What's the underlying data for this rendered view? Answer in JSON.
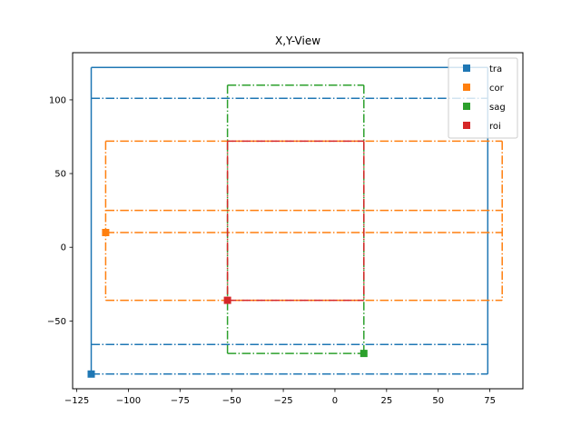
{
  "chart_data": {
    "type": "line",
    "title": "X,Y-View",
    "xlabel": "",
    "ylabel": "",
    "xlim": [
      -127,
      91
    ],
    "ylim": [
      -96,
      132
    ],
    "xticks": [
      -125,
      -100,
      -75,
      -50,
      -25,
      0,
      25,
      50,
      75
    ],
    "yticks": [
      -50,
      0,
      50,
      100
    ],
    "xtick_labels": [
      "−125",
      "−100",
      "−75",
      "−50",
      "−25",
      "0",
      "25",
      "50",
      "75"
    ],
    "ytick_labels": [
      "−50",
      "0",
      "50",
      "100"
    ],
    "legend_position": "top-right",
    "grid": false,
    "series": [
      {
        "name": "tra",
        "color": "#1f77b4",
        "marker": [
          -118,
          -86
        ],
        "segments": [
          {
            "x": [
              -118,
              74
            ],
            "y": [
              122,
              122
            ],
            "style": "solid"
          },
          {
            "x": [
              -118,
              -118
            ],
            "y": [
              122,
              -86
            ],
            "style": "solid"
          },
          {
            "x": [
              74,
              74
            ],
            "y": [
              122,
              -86
            ],
            "style": "solid"
          },
          {
            "x": [
              -118,
              74
            ],
            "y": [
              101,
              101
            ],
            "style": "dashdot"
          },
          {
            "x": [
              -118,
              74
            ],
            "y": [
              -66,
              -66
            ],
            "style": "dashdot"
          },
          {
            "x": [
              -118,
              74
            ],
            "y": [
              -86,
              -86
            ],
            "style": "dashdot"
          }
        ]
      },
      {
        "name": "cor",
        "color": "#ff7f0e",
        "marker": [
          -111,
          10
        ],
        "segments": [
          {
            "x": [
              -111,
              81
            ],
            "y": [
              72,
              72
            ],
            "style": "dashdot"
          },
          {
            "x": [
              -111,
              81
            ],
            "y": [
              25,
              25
            ],
            "style": "dashdot"
          },
          {
            "x": [
              -111,
              81
            ],
            "y": [
              10,
              10
            ],
            "style": "dashdot"
          },
          {
            "x": [
              -111,
              81
            ],
            "y": [
              -36,
              -36
            ],
            "style": "dashdot"
          },
          {
            "x": [
              -111,
              -111
            ],
            "y": [
              72,
              -36
            ],
            "style": "dashdot"
          },
          {
            "x": [
              81,
              81
            ],
            "y": [
              72,
              -36
            ],
            "style": "dashdot"
          }
        ]
      },
      {
        "name": "sag",
        "color": "#2ca02c",
        "marker": [
          14,
          -72
        ],
        "segments": [
          {
            "x": [
              -52,
              14
            ],
            "y": [
              110,
              110
            ],
            "style": "dashdot"
          },
          {
            "x": [
              -52,
              14
            ],
            "y": [
              -72,
              -72
            ],
            "style": "dashdot"
          },
          {
            "x": [
              -52,
              -52
            ],
            "y": [
              110,
              -72
            ],
            "style": "dashdot"
          },
          {
            "x": [
              14,
              14
            ],
            "y": [
              110,
              -72
            ],
            "style": "dashdot"
          }
        ]
      },
      {
        "name": "roi",
        "color": "#d62728",
        "marker": [
          -52,
          -36
        ],
        "segments": [
          {
            "x": [
              -52,
              14
            ],
            "y": [
              72,
              72
            ],
            "style": "dashdot"
          },
          {
            "x": [
              -52,
              14
            ],
            "y": [
              -36,
              -36
            ],
            "style": "dashdot"
          },
          {
            "x": [
              -52,
              -52
            ],
            "y": [
              72,
              -36
            ],
            "style": "dashdot"
          },
          {
            "x": [
              14,
              14
            ],
            "y": [
              72,
              -36
            ],
            "style": "dashdot"
          }
        ]
      }
    ]
  }
}
